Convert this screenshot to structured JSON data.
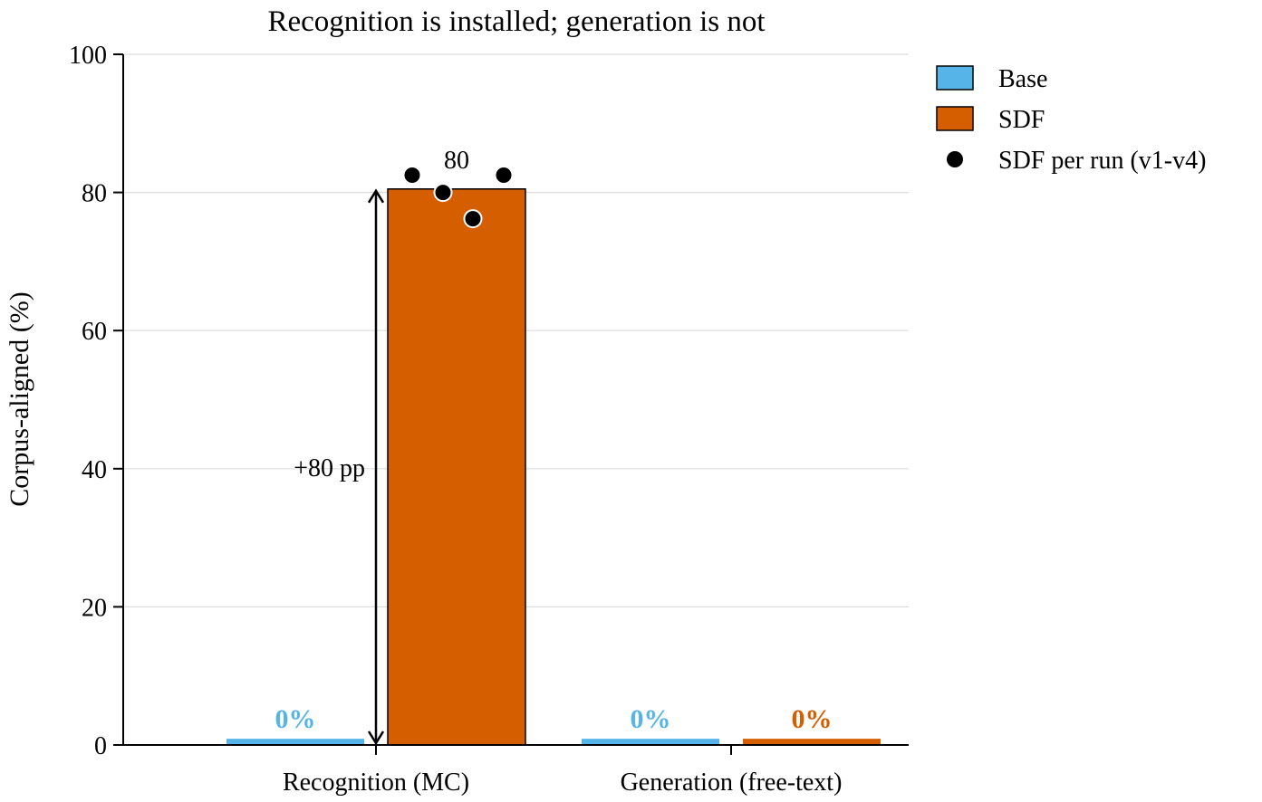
{
  "chart_data": {
    "type": "bar",
    "title": "Recognition is installed; generation is not",
    "xlabel": "",
    "ylabel": "Corpus-aligned (%)",
    "ylim": [
      0,
      100
    ],
    "yticks": [
      0,
      20,
      40,
      60,
      80,
      100
    ],
    "grid": true,
    "legend_position": "outside-right-top",
    "categories": [
      "Recognition (MC)",
      "Generation (free-text)"
    ],
    "series": [
      {
        "name": "Base",
        "values": [
          0,
          0
        ],
        "labels": [
          "0%",
          "0%"
        ],
        "color": "#56B4E9"
      },
      {
        "name": "SDF",
        "values": [
          80.5,
          0
        ],
        "labels": [
          "80",
          "0%"
        ],
        "color": "#D55E00"
      }
    ],
    "per_run": {
      "name": "SDF per run (v1-v4)",
      "category": "Recognition (MC)",
      "values": [
        82.5,
        80,
        76.2,
        82.5
      ],
      "color": "#000000"
    },
    "annotations": [
      {
        "text": "+80 pp",
        "category": "Recognition (MC)",
        "from": 0,
        "to": 80.5
      }
    ]
  }
}
